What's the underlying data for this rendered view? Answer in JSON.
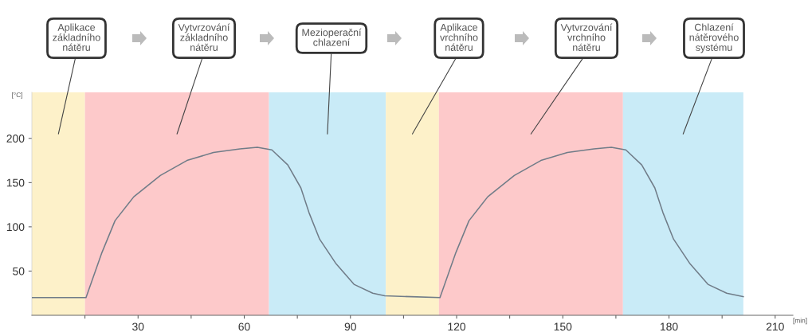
{
  "chart_data": {
    "type": "line",
    "ylabel": "[°C]",
    "xlabel": "[min]",
    "xlim": [
      0,
      215
    ],
    "ylim": [
      0,
      252
    ],
    "xticks": [
      {
        "value": 15,
        "label": null
      },
      30,
      {
        "value": 45,
        "label": null
      },
      60,
      {
        "value": 75,
        "label": null
      },
      90,
      {
        "value": 105,
        "label": null
      },
      120,
      {
        "value": 135,
        "label": null
      },
      150,
      {
        "value": 165,
        "label": null
      },
      180,
      {
        "value": 195,
        "label": null
      },
      210
    ],
    "yticks": [
      50,
      100,
      150,
      200
    ],
    "grid": false,
    "legend": false,
    "marker": "none",
    "line_style": "solid",
    "bands": [
      {
        "axis": "x",
        "from": 0,
        "to": 15,
        "label": "Aplikace základního nátěru",
        "color": "#fdf1c9"
      },
      {
        "axis": "x",
        "from": 15,
        "to": 67,
        "label": "Vytvrzování základního nátěru",
        "color": "#fdc9ca"
      },
      {
        "axis": "x",
        "from": 67,
        "to": 100,
        "label": "Mezioperační chlazení",
        "color": "#c9ebf7"
      },
      {
        "axis": "x",
        "from": 100,
        "to": 115,
        "label": "Aplikace vrchního nátěru",
        "color": "#fdf1c9"
      },
      {
        "axis": "x",
        "from": 115,
        "to": 167,
        "label": "Vytvrzování vrchního nátěru",
        "color": "#fdc9ca"
      },
      {
        "axis": "x",
        "from": 167,
        "to": 201,
        "label": "Chlazení nátěrového systému",
        "color": "#c9ebf7"
      }
    ],
    "series": [
      {
        "color": "#707c88",
        "x": [
          0,
          15.3,
          19.8,
          23.5,
          28.8,
          36.3,
          43.8,
          51.3,
          58.8,
          63.7,
          67.8,
          72.3,
          76,
          78.3,
          81.3,
          85.8,
          91,
          96.3,
          99.7,
          115.3,
          119.8,
          123.5,
          128.8,
          136.3,
          143.8,
          151.3,
          158.8,
          163.7,
          167.8,
          172.3,
          176,
          178.3,
          181.3,
          185.8,
          191,
          196.3,
          201
        ],
        "values": [
          20,
          20,
          71,
          107,
          134,
          158,
          175,
          184,
          188,
          190,
          187,
          170,
          144,
          116,
          86,
          59,
          35,
          25,
          22,
          20,
          71,
          107,
          134,
          158,
          175,
          184,
          188,
          190,
          187,
          170,
          144,
          116,
          86,
          59,
          35,
          25,
          21
        ]
      }
    ]
  }
}
